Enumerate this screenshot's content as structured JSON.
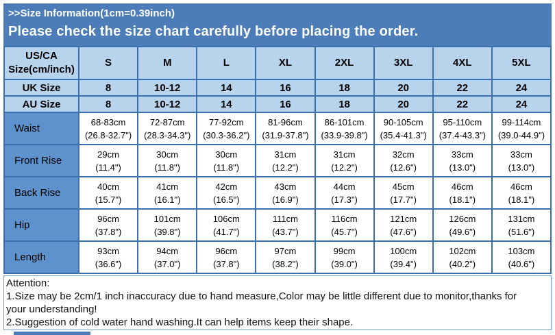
{
  "banner": {
    "title": ">>Size Information(1cm=0.39inch)",
    "notice": "Please check the size chart carefully before placing the order."
  },
  "colors": {
    "banner_blue": "#4c7db8",
    "header_light_blue": "#b8d4ed",
    "label_blue": "#5e92cc",
    "grid_border_blue": "#3a6fae",
    "attention_border_blue": "#6f9fd5"
  },
  "chart_data": {
    "type": "table",
    "title": ">>Size Information(1cm=0.39inch)",
    "columns": [
      "US/CA Size(cm/inch)",
      "S",
      "M",
      "L",
      "XL",
      "2XL",
      "3XL",
      "4XL",
      "5XL"
    ],
    "rows": [
      [
        "UK Size",
        "8",
        "10-12",
        "14",
        "16",
        "18",
        "20",
        "22",
        "24"
      ],
      [
        "AU Size",
        "8",
        "10-12",
        "14",
        "16",
        "18",
        "20",
        "22",
        "24"
      ],
      [
        "Waist",
        "68-83cm\n(26.8-32.7\")",
        "72-87cm\n(28.3-34.3\")",
        "77-92cm\n(30.3-36.2\")",
        "81-96cm\n(31.9-37.8\")",
        "86-101cm\n(33.9-39.8\")",
        "90-105cm\n(35.4-41.3\")",
        "95-110cm\n(37.4-43.3\")",
        "99-114cm\n(39.0-44.9\")"
      ],
      [
        "Front Rise",
        "29cm\n(11.4\")",
        "30cm\n(11.8\")",
        "30cm\n(11.8\")",
        "31cm\n(12.2\")",
        "31cm\n(12.2\")",
        "32cm\n(12.6\")",
        "33cm\n(13.0\")",
        "33cm\n(13.0\")"
      ],
      [
        "Back Rise",
        "40cm\n(15.7\")",
        "41cm\n(16.1\")",
        "42cm\n(16.5\")",
        "43cm\n(16.9\")",
        "44cm\n(17.3\")",
        "45cm\n(17.7\")",
        "46cm\n(18.1\")",
        "46cm\n(18.1\")"
      ],
      [
        "Hip",
        "96cm\n(37.8\")",
        "101cm\n(39.8\")",
        "106cm\n(41.7\")",
        "111cm\n(43.7\")",
        "116cm\n(45.7\")",
        "121cm\n(47.6\")",
        "126cm\n(49.6\")",
        "131cm\n(51.6\")"
      ],
      [
        "Length",
        "93cm\n(36.6\")",
        "94cm\n(37.0\")",
        "96cm\n(37.8\")",
        "97cm\n(38.2\")",
        "99cm\n(39.0\")",
        "100cm\n(39.4\")",
        "102cm\n(40.2\")",
        "103cm\n(40.6\")"
      ]
    ]
  },
  "attention": {
    "title": "Attention:",
    "note1": "1.Size may be 2cm/1 inch inaccuracy due to hand measure,Color may be little different due to monitor,thanks for\nyour understanding!",
    "note2": "2.Suggestion of cold water hand washing.It can help items keep their shape."
  }
}
